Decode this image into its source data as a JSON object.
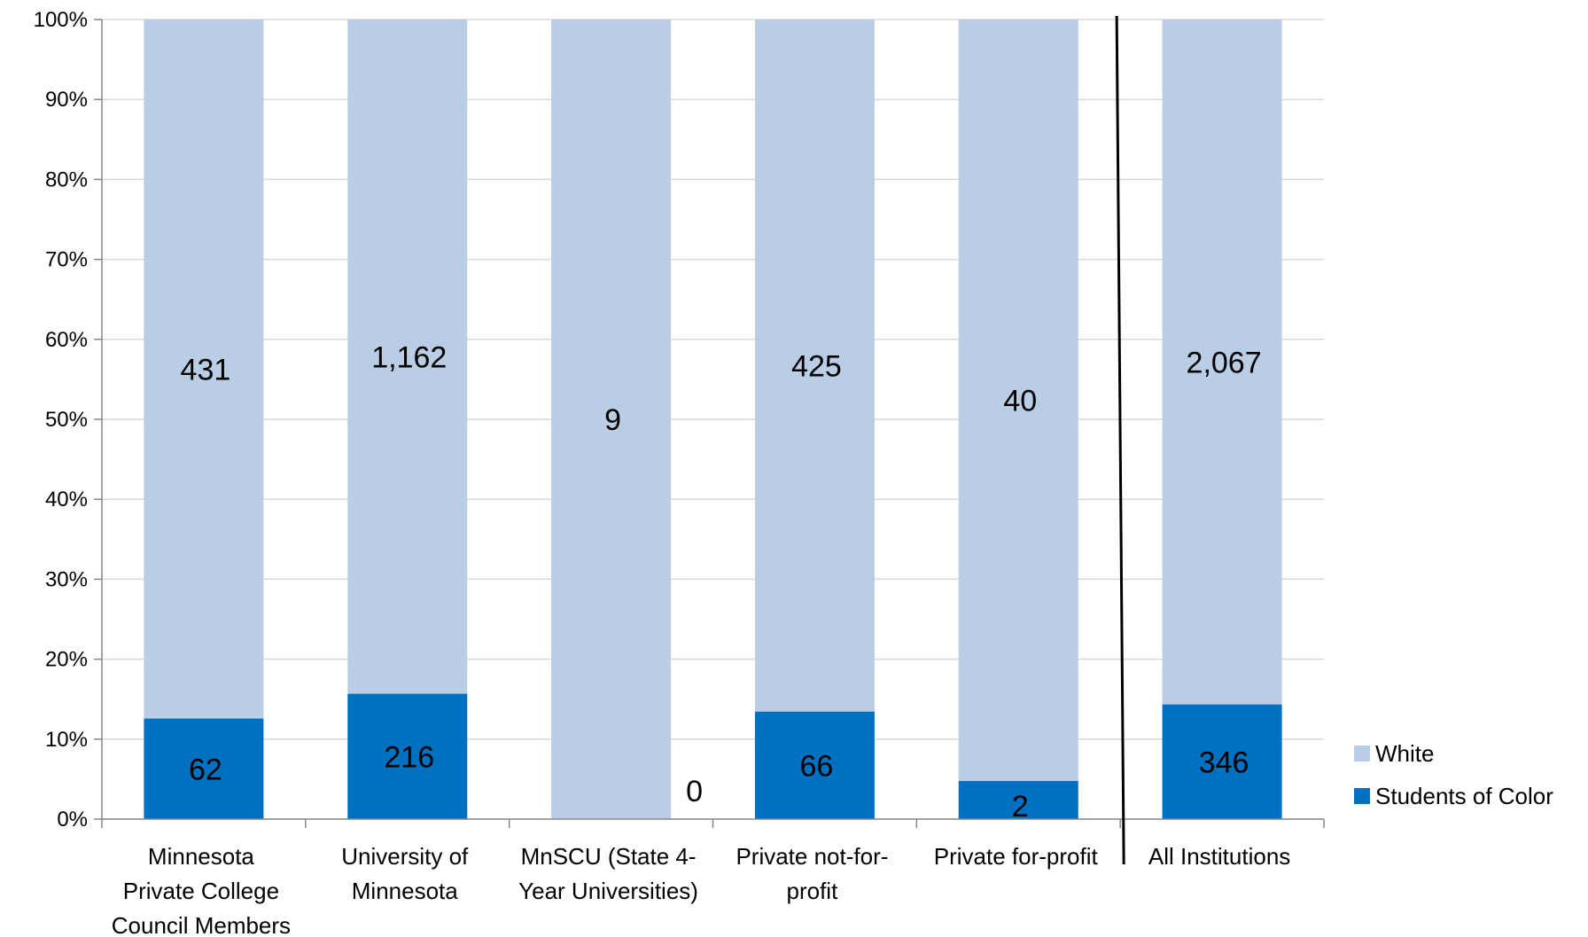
{
  "chart_data": {
    "type": "bar",
    "stacked": "percent",
    "title": "",
    "xlabel": "",
    "ylabel": "",
    "ylim": [
      0,
      100
    ],
    "y_ticks": [
      "0%",
      "10%",
      "20%",
      "30%",
      "40%",
      "50%",
      "60%",
      "70%",
      "80%",
      "90%",
      "100%"
    ],
    "grid": true,
    "legend_position": "bottom-right",
    "categories": [
      "Minnesota Private College Council Members",
      "University of Minnesota",
      "MnSCU (State 4-Year Universities)",
      "Private not-for-profit",
      "Private for-profit",
      "All Institutions"
    ],
    "category_lines": [
      [
        "Minnesota",
        "Private College",
        "Council Members"
      ],
      [
        "University of",
        "Minnesota"
      ],
      [
        "MnSCU (State 4-",
        "Year Universities)"
      ],
      [
        "Private not-for-",
        "profit"
      ],
      [
        "Private for-profit"
      ],
      [
        "All Institutions"
      ]
    ],
    "series": [
      {
        "name": "Students of Color",
        "color": "#0070c0",
        "values": [
          62,
          216,
          0,
          66,
          2,
          346
        ],
        "labels": [
          "62",
          "216",
          "0",
          "66",
          "2",
          "346"
        ]
      },
      {
        "name": "White",
        "color": "#b9cde5",
        "values": [
          431,
          1162,
          9,
          425,
          40,
          2067
        ],
        "labels": [
          "431",
          "1,162",
          "9",
          "425",
          "40",
          "2,067"
        ]
      }
    ],
    "divider_after_category": 4
  }
}
